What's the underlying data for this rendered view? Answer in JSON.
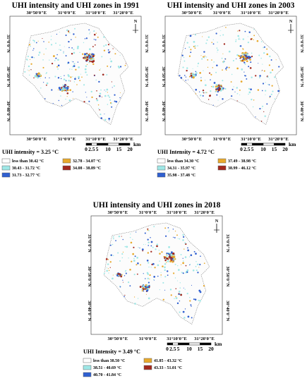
{
  "panels": [
    {
      "title": "UHI intensity and UHI zones in 1991",
      "lon_labels": [
        "30°50'0\"E",
        "31°0'0\"E",
        "31°10'0\"E",
        "31°20'0\"E"
      ],
      "lat_labels": [
        "31°0'0\"N",
        "30°50'0\"N",
        "30°40'0\"N"
      ],
      "north": "N",
      "scale_labels": [
        0,
        2.5,
        5,
        10,
        15,
        20
      ],
      "scale_unit": "km",
      "intensity": "UHI intensity = 3.25 °C",
      "legend": [
        {
          "label": "less than 30.42 °C",
          "color": "#ffffff"
        },
        {
          "label": "30.43 - 31.72 °C",
          "color": "#9ee7e6"
        },
        {
          "label": "31.73 - 32.77 °C",
          "color": "#2f5fd0"
        },
        {
          "label": "32.78 - 34.07 °C",
          "color": "#e8a92c"
        },
        {
          "label": "34.08 - 38.89 °C",
          "color": "#a3281e"
        }
      ]
    },
    {
      "title": "UHI intensity and UHI zones in 2003",
      "lon_labels": [
        "30°50'0\"E",
        "31°0'0\"E",
        "31°10'0\"E",
        "31°20'0\"E"
      ],
      "lat_labels": [
        "31°0'0\"N",
        "30°50'0\"N",
        "30°40'0\"N"
      ],
      "north": "N",
      "scale_labels": [
        0,
        2.5,
        5,
        10,
        15,
        20
      ],
      "scale_unit": "km",
      "intensity": "UHI Intensity = 4.72 °C",
      "legend": [
        {
          "label": "less than 34.30 °C",
          "color": "#ffffff"
        },
        {
          "label": "34.31 - 35.97 °C",
          "color": "#9ee7e6"
        },
        {
          "label": "35.98 - 37.48 °C",
          "color": "#2f5fd0"
        },
        {
          "label": "37.49 - 38.98 °C",
          "color": "#e8a92c"
        },
        {
          "label": "38.99 - 46.12 °C",
          "color": "#a3281e"
        }
      ]
    },
    {
      "title": "UHI intensity and UHI zones in 2018",
      "lon_labels": [
        "30°50'0\"E",
        "31°0'0\"E",
        "31°10'0\"E",
        "31°20'0\"E"
      ],
      "lat_labels": [
        "31°0'0\"N",
        "30°50'0\"N",
        "30°40'0\"N"
      ],
      "north": "N",
      "scale_labels": [
        0,
        2.5,
        5,
        10,
        15,
        20
      ],
      "scale_unit": "km",
      "intensity": "UHI Intensity = 3.49 °C",
      "legend": [
        {
          "label": "less than 38.50 °C",
          "color": "#ffffff"
        },
        {
          "label": "38.51 - 40.69 °C",
          "color": "#9ee7e6"
        },
        {
          "label": "40.70 - 41.84 °C",
          "color": "#2f5fd0"
        },
        {
          "label": "41.85 - 43.32 °C",
          "color": "#e8a92c"
        },
        {
          "label": "43.33 - 51.01 °C",
          "color": "#a3281e"
        }
      ]
    }
  ]
}
